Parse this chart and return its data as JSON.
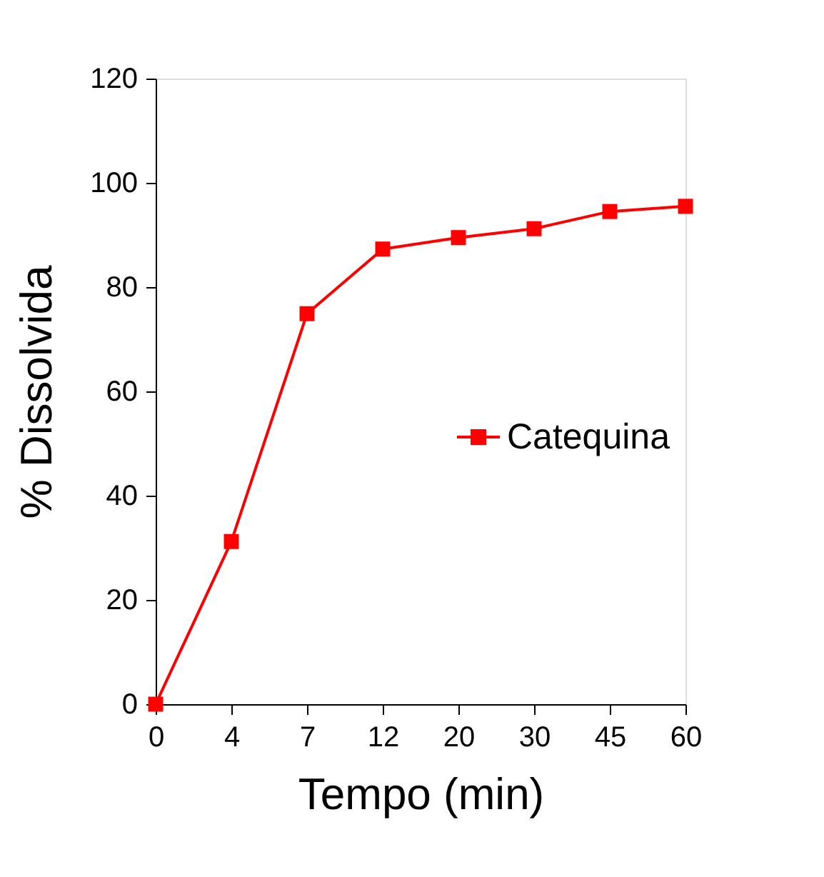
{
  "chart_data": {
    "type": "line",
    "xlabel": "Tempo (min)",
    "ylabel": "% Dissolvida",
    "categories": [
      "0",
      "4",
      "7",
      "12",
      "20",
      "30",
      "45",
      "60"
    ],
    "series": [
      {
        "name": "Catequina",
        "color": "#ff0000",
        "values": [
          0,
          31.2,
          74.9,
          87.3,
          89.5,
          91.2,
          94.5,
          95.5
        ]
      }
    ],
    "ylim": [
      0,
      120
    ],
    "yticks": [
      0,
      20,
      40,
      60,
      80,
      100,
      120
    ],
    "grid": false,
    "legend": "right",
    "marker": "square",
    "line_style": "solid"
  }
}
